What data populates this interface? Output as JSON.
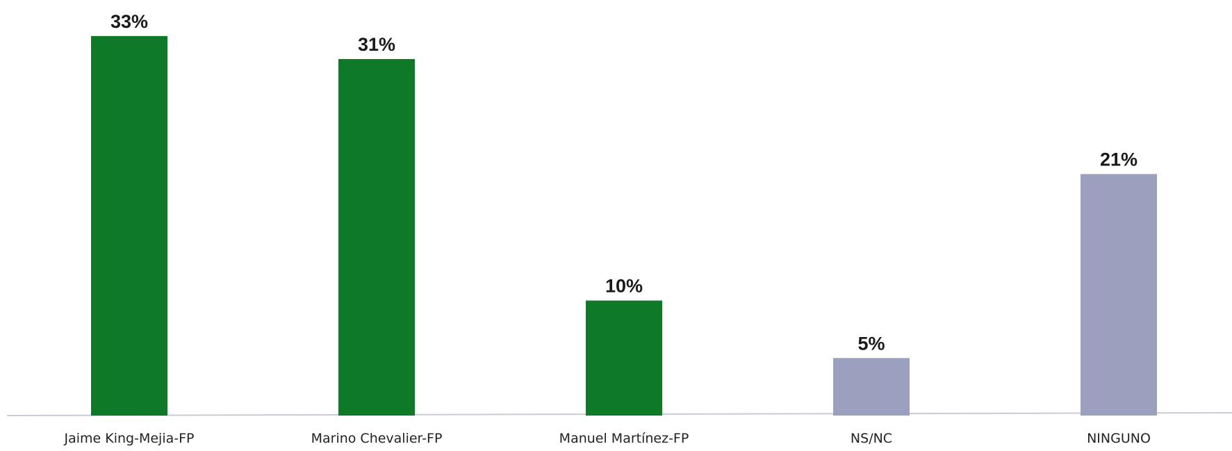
{
  "chart_data": {
    "type": "bar",
    "categories": [
      "Jaime King-Mejia-FP",
      "Marino Chevalier-FP",
      "Manuel Martínez-FP",
      "NS/NC",
      "NINGUNO"
    ],
    "values": [
      33,
      31,
      10,
      5,
      21
    ],
    "value_labels": [
      "33%",
      "31%",
      "10%",
      "5%",
      "21%"
    ],
    "bar_colors": [
      "#0e7a27",
      "#0e7a27",
      "#0e7a27",
      "#9aa0bd",
      "#9aa0bd"
    ],
    "title": "",
    "xlabel": "",
    "ylabel": "",
    "ylim": [
      0,
      35
    ],
    "grid": false,
    "legend": "none"
  }
}
